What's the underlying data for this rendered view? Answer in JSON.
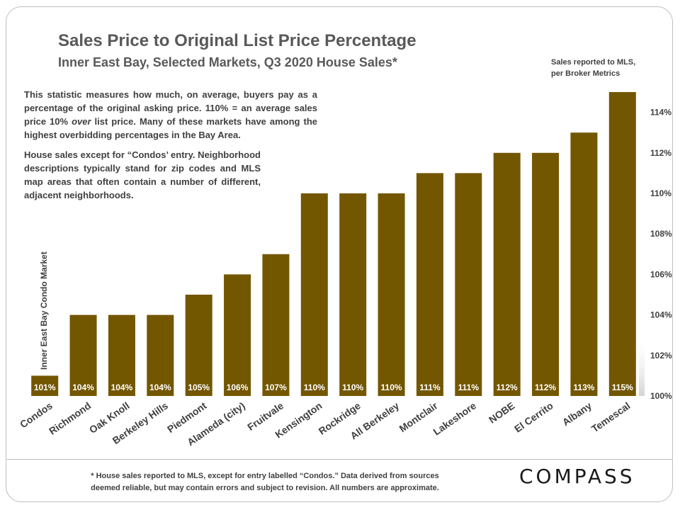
{
  "header": {
    "title": "Sales Price to Original List Price Percentage",
    "subtitle": "Inner East Bay, Selected Markets,  Q3 2020 House Sales*",
    "source_note_line1": "Sales reported to MLS,",
    "source_note_line2": "per Broker Metrics"
  },
  "notes": {
    "para1_a": "This statistic measures how much, on average, buyers pay as a percentage of the original asking price. 110% = an average sales price 10% ",
    "para1_em": "over",
    "para1_b": " list price. Many of these markets have among the highest overbidding percentages in the Bay Area.",
    "para2": "House sales except for “Condos’ entry. Neighborhood descriptions typically stand for zip codes and MLS map areas that often contain a number of different, adjacent neighborhoods."
  },
  "footer": {
    "footnote_line1": "* House sales reported to MLS, except for entry labelled “Condos.” Data derived from sources",
    "footnote_line2": "deemed reliable, but may contain errors and subject to revision.  All numbers are approximate.",
    "logo": "COMPASS"
  },
  "chart_data": {
    "type": "bar",
    "categories": [
      "Condos",
      "Richmond",
      "Oak Knoll",
      "Berkeley Hills",
      "Piedmont",
      "Alameda (city)",
      "Fruitvale",
      "Kensington",
      "Rockridge",
      "All Berkeley",
      "Montclair",
      "Lakeshore",
      "NOBE",
      "El Cerrito",
      "Albany",
      "Temescal"
    ],
    "values": [
      101,
      104,
      104,
      104,
      105,
      106,
      107,
      110,
      110,
      110,
      111,
      111,
      112,
      112,
      113,
      115
    ],
    "data_labels": [
      "101%",
      "104%",
      "104%",
      "104%",
      "105%",
      "106%",
      "107%",
      "110%",
      "110%",
      "110%",
      "111%",
      "111%",
      "112%",
      "112%",
      "113%",
      "115%"
    ],
    "y_ticks": [
      100,
      102,
      104,
      106,
      108,
      110,
      112,
      114
    ],
    "y_tick_labels": [
      "100%",
      "102%",
      "104%",
      "106%",
      "108%",
      "110%",
      "112%",
      "114%"
    ],
    "ylim": [
      100,
      115
    ],
    "y_axis_side": "right",
    "bar_color": "#735600",
    "annotation": "Inner East Bay Condo Market",
    "grid": false,
    "legend": "none"
  }
}
